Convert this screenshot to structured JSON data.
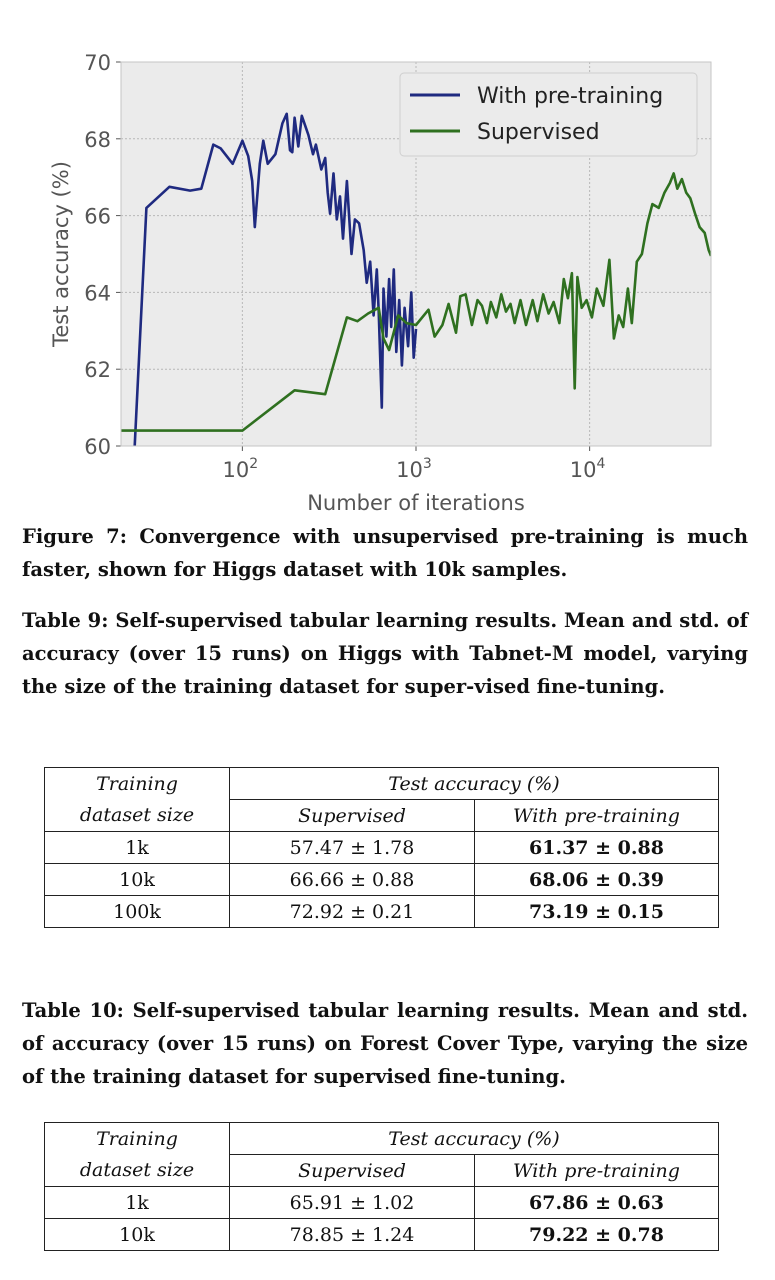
{
  "chart_data": {
    "type": "line",
    "xscale": "log",
    "xlabel": "Number of iterations",
    "ylabel": "Test accuracy (%)",
    "xlim": [
      20,
      50000
    ],
    "ylim": [
      60,
      70
    ],
    "yticks": [
      "60",
      "62",
      "64",
      "66",
      "68",
      "70"
    ],
    "xticks": [
      {
        "value": 100,
        "base": "10",
        "exp": "2"
      },
      {
        "value": 1000,
        "base": "10",
        "exp": "3"
      },
      {
        "value": 10000,
        "base": "10",
        "exp": "4"
      }
    ],
    "grid": true,
    "legend_position": "top-right",
    "series": [
      {
        "name": "With pre-training",
        "color": "#1f2a80",
        "points": [
          [
            24,
            60.0
          ],
          [
            28,
            66.2
          ],
          [
            38,
            66.75
          ],
          [
            50,
            66.65
          ],
          [
            58,
            66.7
          ],
          [
            68,
            67.85
          ],
          [
            75,
            67.75
          ],
          [
            88,
            67.35
          ],
          [
            100,
            67.95
          ],
          [
            108,
            67.55
          ],
          [
            114,
            66.9
          ],
          [
            118,
            65.7
          ],
          [
            126,
            67.35
          ],
          [
            132,
            67.95
          ],
          [
            140,
            67.35
          ],
          [
            155,
            67.6
          ],
          [
            170,
            68.4
          ],
          [
            180,
            68.65
          ],
          [
            188,
            67.7
          ],
          [
            194,
            67.65
          ],
          [
            200,
            68.55
          ],
          [
            210,
            67.8
          ],
          [
            220,
            68.6
          ],
          [
            240,
            68.1
          ],
          [
            255,
            67.6
          ],
          [
            265,
            67.85
          ],
          [
            285,
            67.2
          ],
          [
            300,
            67.5
          ],
          [
            310,
            66.6
          ],
          [
            320,
            66.05
          ],
          [
            335,
            67.1
          ],
          [
            350,
            65.9
          ],
          [
            365,
            66.5
          ],
          [
            380,
            65.4
          ],
          [
            400,
            66.9
          ],
          [
            425,
            65.0
          ],
          [
            445,
            65.9
          ],
          [
            470,
            65.8
          ],
          [
            500,
            65.1
          ],
          [
            520,
            64.25
          ],
          [
            545,
            64.8
          ],
          [
            570,
            63.4
          ],
          [
            595,
            64.6
          ],
          [
            610,
            63.5
          ],
          [
            635,
            61.0
          ],
          [
            650,
            64.1
          ],
          [
            675,
            62.85
          ],
          [
            700,
            64.35
          ],
          [
            720,
            63.1
          ],
          [
            745,
            64.6
          ],
          [
            770,
            62.45
          ],
          [
            800,
            63.8
          ],
          [
            830,
            62.1
          ],
          [
            860,
            63.6
          ],
          [
            900,
            62.6
          ],
          [
            940,
            64.0
          ],
          [
            970,
            62.3
          ],
          [
            1000,
            63.05
          ]
        ]
      },
      {
        "name": "Supervised",
        "color": "#2f7020",
        "points": [
          [
            20,
            60.4
          ],
          [
            100,
            60.4
          ],
          [
            200,
            61.45
          ],
          [
            300,
            61.35
          ],
          [
            400,
            63.35
          ],
          [
            460,
            63.25
          ],
          [
            530,
            63.45
          ],
          [
            610,
            63.6
          ],
          [
            650,
            62.8
          ],
          [
            700,
            62.5
          ],
          [
            790,
            63.4
          ],
          [
            880,
            63.2
          ],
          [
            1000,
            63.15
          ],
          [
            1180,
            63.55
          ],
          [
            1280,
            62.85
          ],
          [
            1420,
            63.15
          ],
          [
            1540,
            63.7
          ],
          [
            1700,
            62.95
          ],
          [
            1800,
            63.9
          ],
          [
            1930,
            63.95
          ],
          [
            2100,
            63.15
          ],
          [
            2260,
            63.8
          ],
          [
            2400,
            63.65
          ],
          [
            2560,
            63.2
          ],
          [
            2700,
            63.75
          ],
          [
            2900,
            63.35
          ],
          [
            3100,
            63.95
          ],
          [
            3300,
            63.5
          ],
          [
            3500,
            63.7
          ],
          [
            3700,
            63.2
          ],
          [
            4000,
            63.8
          ],
          [
            4300,
            63.15
          ],
          [
            4700,
            63.8
          ],
          [
            5000,
            63.25
          ],
          [
            5400,
            63.95
          ],
          [
            5800,
            63.45
          ],
          [
            6200,
            63.75
          ],
          [
            6700,
            63.2
          ],
          [
            7100,
            64.35
          ],
          [
            7500,
            63.85
          ],
          [
            7900,
            64.5
          ],
          [
            8200,
            61.5
          ],
          [
            8500,
            64.4
          ],
          [
            9000,
            63.6
          ],
          [
            9600,
            63.8
          ],
          [
            10300,
            63.35
          ],
          [
            11000,
            64.1
          ],
          [
            12000,
            63.65
          ],
          [
            13000,
            64.85
          ],
          [
            13800,
            62.8
          ],
          [
            14700,
            63.4
          ],
          [
            15600,
            63.1
          ],
          [
            16600,
            64.1
          ],
          [
            17500,
            63.2
          ],
          [
            18700,
            64.8
          ],
          [
            20000,
            65.0
          ],
          [
            21500,
            65.8
          ],
          [
            23000,
            66.3
          ],
          [
            25000,
            66.2
          ],
          [
            27000,
            66.6
          ],
          [
            29000,
            66.85
          ],
          [
            30500,
            67.1
          ],
          [
            32000,
            66.7
          ],
          [
            34000,
            66.95
          ],
          [
            36000,
            66.6
          ],
          [
            38000,
            66.45
          ],
          [
            40500,
            66.05
          ],
          [
            43000,
            65.7
          ],
          [
            46000,
            65.55
          ],
          [
            48500,
            65.1
          ],
          [
            50000,
            64.95
          ]
        ]
      }
    ]
  },
  "figure_caption": "Figure 7:  Convergence with unsupervised pre-training is much faster, shown for Higgs dataset with 10k samples.",
  "table9": {
    "caption": "Table 9: Self-supervised tabular learning results. Mean and std.  of accuracy (over 15 runs) on Higgs with Tabnet-M model, varying the size of the training dataset for super-vised fine-tuning.",
    "header_label_1": "Training",
    "header_label_2": "dataset size",
    "header_group": "Test accuracy (%)",
    "col_supervised": "Supervised",
    "col_pretraining": "With pre-training",
    "rows": [
      {
        "size": "1k",
        "supervised": "57.47 ± 1.78",
        "pretraining": "61.37 ± 0.88"
      },
      {
        "size": "10k",
        "supervised": "66.66 ± 0.88",
        "pretraining": "68.06 ± 0.39"
      },
      {
        "size": "100k",
        "supervised": "72.92 ± 0.21",
        "pretraining": "73.19 ± 0.15"
      }
    ]
  },
  "table10": {
    "caption": "Table 10: Self-supervised tabular learning results. Mean and std. of accuracy (over 15 runs) on Forest Cover Type, varying the size of the training dataset for supervised fine-tuning.",
    "header_label_1": "Training",
    "header_label_2": "dataset size",
    "header_group": "Test accuracy (%)",
    "col_supervised": "Supervised",
    "col_pretraining": "With pre-training",
    "rows": [
      {
        "size": "1k",
        "supervised": "65.91 ± 1.02",
        "pretraining": "67.86 ± 0.63"
      },
      {
        "size": "10k",
        "supervised": "78.85 ± 1.24",
        "pretraining": "79.22 ± 0.78"
      }
    ]
  }
}
